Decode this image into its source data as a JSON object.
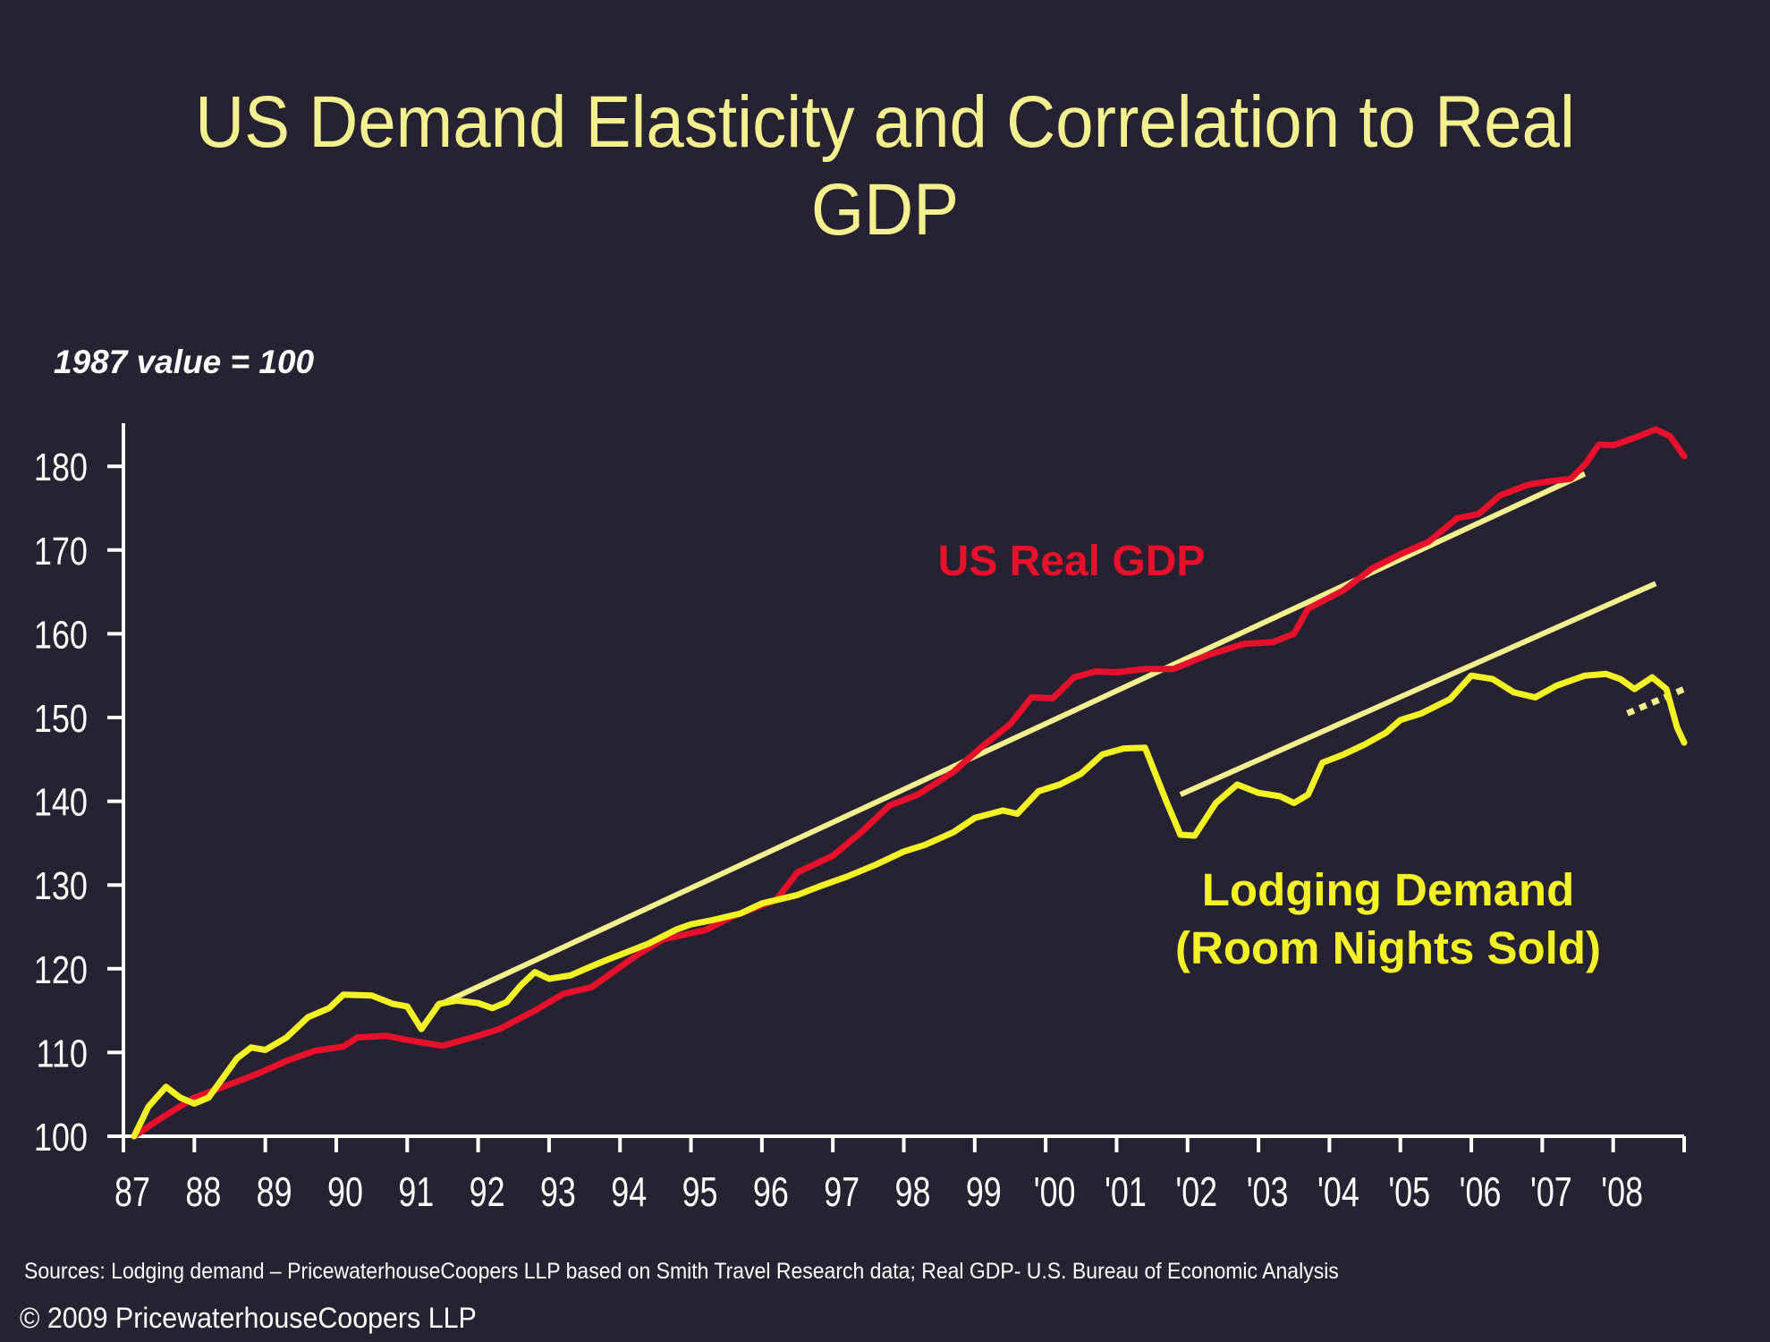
{
  "slide": {
    "title_line1": "US Demand Elasticity and Correlation to Real",
    "title_line2": "GDP",
    "subtitle": "1987 value = 100",
    "sources": "Sources: Lodging demand – PricewaterhouseCoopers LLP based on Smith Travel Research data; Real GDP- U.S. Bureau of Economic Analysis",
    "copyright": "© 2009 PricewaterhouseCoopers LLP"
  },
  "colors": {
    "background": "#272232",
    "title": "#F3F08F",
    "gdp": "#E8102A",
    "lodging": "#F2F224",
    "trend": "#F3F08F",
    "axis": "#FFFFFF"
  },
  "chart_data": {
    "type": "line",
    "title": "US Demand Elasticity and Correlation to Real GDP",
    "subtitle": "1987 value = 100",
    "xlabel": "",
    "ylabel": "",
    "xlim": [
      1987,
      2009
    ],
    "ylim": [
      100,
      185
    ],
    "y_ticks": [
      100,
      110,
      120,
      130,
      140,
      150,
      160,
      170,
      180
    ],
    "x_tick_labels": [
      "87",
      "88",
      "89",
      "90",
      "91",
      "92",
      "93",
      "94",
      "95",
      "96",
      "97",
      "98",
      "99",
      "'00",
      "'01",
      "'02",
      "'03",
      "'04",
      "'05",
      "'06",
      "'07",
      "'08"
    ],
    "grid": false,
    "legend": "inline labels",
    "series": [
      {
        "name": "US Real GDP",
        "label": "US Real GDP",
        "color": "#E8102A",
        "points": [
          [
            1987.15,
            100.0
          ],
          [
            1987.5,
            102.0
          ],
          [
            1988.0,
            104.6
          ],
          [
            1988.5,
            106.2
          ],
          [
            1988.9,
            107.5
          ],
          [
            1989.3,
            109.0
          ],
          [
            1989.7,
            110.2
          ],
          [
            1990.1,
            110.7
          ],
          [
            1990.3,
            111.8
          ],
          [
            1990.7,
            112.0
          ],
          [
            1991.0,
            111.5
          ],
          [
            1991.5,
            110.8
          ],
          [
            1992.0,
            112.0
          ],
          [
            1992.3,
            112.8
          ],
          [
            1992.8,
            115.0
          ],
          [
            1993.2,
            117.0
          ],
          [
            1993.6,
            117.8
          ],
          [
            1994.2,
            121.4
          ],
          [
            1994.6,
            123.5
          ],
          [
            1995.2,
            124.6
          ],
          [
            1995.6,
            126.3
          ],
          [
            1996.2,
            128.2
          ],
          [
            1996.5,
            131.5
          ],
          [
            1997.0,
            133.5
          ],
          [
            1997.4,
            136.3
          ],
          [
            1997.8,
            139.5
          ],
          [
            1998.2,
            140.8
          ],
          [
            1998.7,
            143.5
          ],
          [
            1999.1,
            146.5
          ],
          [
            1999.5,
            149.2
          ],
          [
            1999.8,
            152.4
          ],
          [
            2000.1,
            152.3
          ],
          [
            2000.4,
            154.8
          ],
          [
            2000.7,
            155.5
          ],
          [
            2001.0,
            155.4
          ],
          [
            2001.4,
            155.8
          ],
          [
            2001.8,
            155.8
          ],
          [
            2002.3,
            157.5
          ],
          [
            2002.8,
            158.8
          ],
          [
            2003.2,
            159.0
          ],
          [
            2003.5,
            160.0
          ],
          [
            2003.7,
            163.0
          ],
          [
            2004.2,
            165.2
          ],
          [
            2004.6,
            167.8
          ],
          [
            2005.0,
            169.5
          ],
          [
            2005.4,
            171.0
          ],
          [
            2005.8,
            173.8
          ],
          [
            2006.1,
            174.3
          ],
          [
            2006.4,
            176.5
          ],
          [
            2006.8,
            177.8
          ],
          [
            2007.1,
            178.2
          ],
          [
            2007.4,
            178.5
          ],
          [
            2007.6,
            180.2
          ],
          [
            2007.8,
            182.6
          ],
          [
            2008.0,
            182.5
          ],
          [
            2008.3,
            183.4
          ],
          [
            2008.6,
            184.4
          ],
          [
            2008.8,
            183.6
          ],
          [
            2009.0,
            181.2
          ]
        ]
      },
      {
        "name": "Lodging Demand (Room Nights Sold)",
        "label": "Lodging Demand\n(Room Nights Sold)",
        "color": "#F2F224",
        "points": [
          [
            1987.15,
            100.0
          ],
          [
            1987.35,
            103.5
          ],
          [
            1987.6,
            105.9
          ],
          [
            1987.8,
            104.6
          ],
          [
            1988.0,
            103.9
          ],
          [
            1988.2,
            104.6
          ],
          [
            1988.6,
            109.3
          ],
          [
            1988.8,
            110.6
          ],
          [
            1989.0,
            110.3
          ],
          [
            1989.3,
            111.8
          ],
          [
            1989.6,
            114.2
          ],
          [
            1989.9,
            115.3
          ],
          [
            1990.1,
            116.9
          ],
          [
            1990.5,
            116.8
          ],
          [
            1990.8,
            115.8
          ],
          [
            1991.0,
            115.5
          ],
          [
            1991.2,
            112.8
          ],
          [
            1991.45,
            115.8
          ],
          [
            1991.7,
            116.2
          ],
          [
            1992.0,
            115.9
          ],
          [
            1992.2,
            115.3
          ],
          [
            1992.4,
            116.0
          ],
          [
            1992.6,
            118.0
          ],
          [
            1992.8,
            119.6
          ],
          [
            1993.0,
            118.8
          ],
          [
            1993.3,
            119.2
          ],
          [
            1993.6,
            120.3
          ],
          [
            1993.8,
            121.0
          ],
          [
            1994.1,
            122.0
          ],
          [
            1994.4,
            123.0
          ],
          [
            1994.8,
            124.7
          ],
          [
            1995.0,
            125.3
          ],
          [
            1995.3,
            125.8
          ],
          [
            1995.7,
            126.6
          ],
          [
            1996.0,
            127.8
          ],
          [
            1996.5,
            128.8
          ],
          [
            1996.8,
            129.8
          ],
          [
            1997.2,
            131.0
          ],
          [
            1997.6,
            132.4
          ],
          [
            1998.0,
            134.0
          ],
          [
            1998.3,
            134.8
          ],
          [
            1998.7,
            136.3
          ],
          [
            1999.0,
            138.0
          ],
          [
            1999.4,
            138.9
          ],
          [
            1999.6,
            138.5
          ],
          [
            1999.9,
            141.2
          ],
          [
            2000.2,
            142.0
          ],
          [
            2000.5,
            143.3
          ],
          [
            2000.8,
            145.6
          ],
          [
            2001.1,
            146.3
          ],
          [
            2001.4,
            146.4
          ],
          [
            2001.7,
            140.0
          ],
          [
            2001.9,
            136.0
          ],
          [
            2002.1,
            135.9
          ],
          [
            2002.4,
            139.8
          ],
          [
            2002.7,
            142.0
          ],
          [
            2003.0,
            141.0
          ],
          [
            2003.3,
            140.6
          ],
          [
            2003.5,
            139.8
          ],
          [
            2003.7,
            140.8
          ],
          [
            2003.9,
            144.6
          ],
          [
            2004.2,
            145.6
          ],
          [
            2004.5,
            146.8
          ],
          [
            2004.8,
            148.2
          ],
          [
            2005.0,
            149.7
          ],
          [
            2005.3,
            150.5
          ],
          [
            2005.7,
            152.2
          ],
          [
            2006.0,
            155.0
          ],
          [
            2006.3,
            154.6
          ],
          [
            2006.6,
            153.0
          ],
          [
            2006.9,
            152.4
          ],
          [
            2007.2,
            153.8
          ],
          [
            2007.6,
            155.0
          ],
          [
            2007.9,
            155.2
          ],
          [
            2008.1,
            154.6
          ],
          [
            2008.3,
            153.4
          ],
          [
            2008.55,
            154.8
          ],
          [
            2008.75,
            153.4
          ],
          [
            2008.9,
            148.8
          ],
          [
            2009.0,
            147.0
          ]
        ]
      }
    ],
    "trend_lines": [
      {
        "name": "GDP-tracking trend",
        "from": [
          1991.4,
          115.5
        ],
        "to": [
          2007.6,
          179.1
        ],
        "style": "solid"
      },
      {
        "name": "Lodging trend",
        "from": [
          2001.9,
          140.8
        ],
        "to": [
          2008.6,
          166.0
        ],
        "style": "solid"
      },
      {
        "name": "Lodging forecast",
        "from": [
          2008.2,
          150.5
        ],
        "to": [
          2009.0,
          153.4
        ],
        "style": "dotted"
      }
    ]
  }
}
